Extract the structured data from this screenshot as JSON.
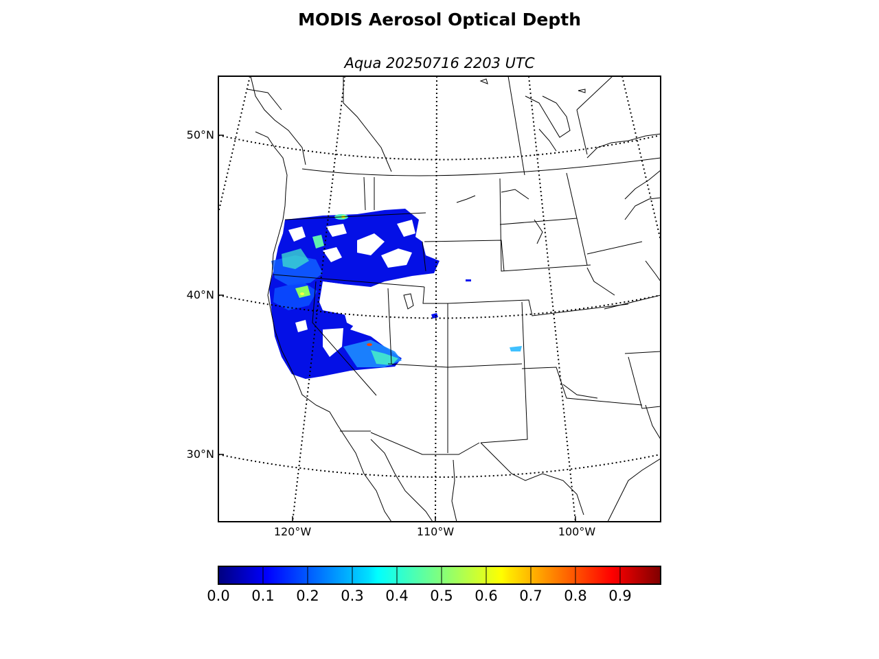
{
  "title": "MODIS Aerosol Optical Depth",
  "subtitle": "Aqua 20250716 2203 UTC",
  "latitude_labels": [
    "50°N",
    "40°N",
    "30°N"
  ],
  "longitude_labels": [
    "120°W",
    "110°W",
    "100°W"
  ],
  "colorbar": {
    "ticks": [
      "0.0",
      "0.1",
      "0.2",
      "0.3",
      "0.4",
      "0.5",
      "0.6",
      "0.7",
      "0.8",
      "0.9"
    ],
    "range": [
      0.0,
      1.0
    ],
    "colormap": "jet",
    "colors": [
      "#00008f",
      "#0000ff",
      "#0080ff",
      "#00ffff",
      "#80ff80",
      "#ffff00",
      "#ff8000",
      "#ff0000",
      "#800000"
    ]
  },
  "map": {
    "projection": "lambert-conformal",
    "region": "Western and Central United States",
    "borders": [
      "coastlines",
      "country-borders",
      "state-borders"
    ],
    "graticule": "dotted",
    "aod_colors": {
      "low": "#0000d0",
      "mid": "#0a5cff",
      "high": "#35e6c8",
      "peak": "#ffff00",
      "max": "#ff3000"
    }
  }
}
